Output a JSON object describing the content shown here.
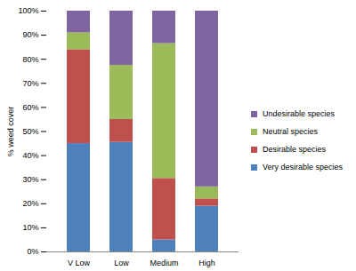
{
  "chart_data": {
    "type": "bar",
    "stacked": true,
    "ylabel": "% weed cover",
    "categories": [
      "V Low",
      "Low",
      "Medium",
      "High"
    ],
    "ylim": [
      0,
      100
    ],
    "yticks": [
      {
        "value": 0,
        "label": "0%"
      },
      {
        "value": 10,
        "label": "10%"
      },
      {
        "value": 20,
        "label": "20%"
      },
      {
        "value": 30,
        "label": "30%"
      },
      {
        "value": 40,
        "label": "40%"
      },
      {
        "value": 50,
        "label": "50%"
      },
      {
        "value": 60,
        "label": "60%"
      },
      {
        "value": 70,
        "label": "70%"
      },
      {
        "value": 80,
        "label": "80%"
      },
      {
        "value": 90,
        "label": "90%"
      },
      {
        "value": 100,
        "label": "100%"
      }
    ],
    "legend": "right",
    "series": [
      {
        "name": "Very desirable species",
        "color": "#4f81bd",
        "values": [
          45,
          45.5,
          5,
          19
        ]
      },
      {
        "name": "Desirable species",
        "color": "#c0504d",
        "values": [
          39,
          9.5,
          25.5,
          3
        ]
      },
      {
        "name": "Neutral species",
        "color": "#9bbb59",
        "values": [
          7,
          22.5,
          56,
          5
        ]
      },
      {
        "name": "Undesirable species",
        "color": "#8064a2",
        "values": [
          9,
          22.5,
          13.5,
          73
        ]
      }
    ]
  }
}
